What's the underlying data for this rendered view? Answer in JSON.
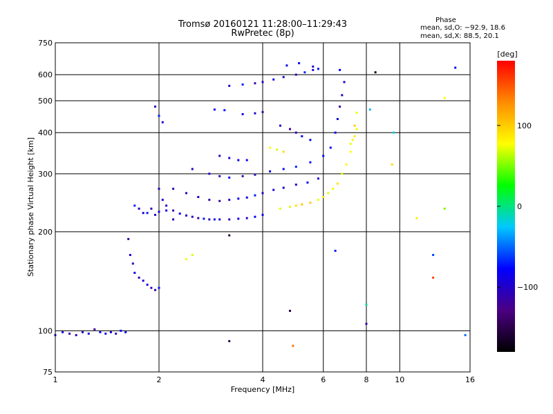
{
  "chart_data": {
    "type": "scatter",
    "title": "Tromsø 20160121 11:28:00–11:29:43",
    "subtitle": "RwPretec (8p)",
    "xlabel": "Frequency [MHz]",
    "ylabel": "Stationary phase Virtual Height [km]",
    "x_scale": "log",
    "y_scale": "log",
    "xlim": [
      1,
      16
    ],
    "ylim": [
      75,
      750
    ],
    "x_ticks": [
      {
        "value": 1,
        "label": "1"
      },
      {
        "value": 2,
        "label": "2"
      },
      {
        "value": 4,
        "label": "4"
      },
      {
        "value": 6,
        "label": "6"
      },
      {
        "value": 8,
        "label": "8"
      },
      {
        "value": 10,
        "label": "10"
      },
      {
        "value": 16,
        "label": "16"
      }
    ],
    "y_ticks": [
      {
        "value": 75,
        "label": "75"
      },
      {
        "value": 100,
        "label": "100"
      },
      {
        "value": 200,
        "label": "200"
      },
      {
        "value": 300,
        "label": "300"
      },
      {
        "value": 400,
        "label": "400"
      },
      {
        "value": 500,
        "label": "500"
      },
      {
        "value": 600,
        "label": "600"
      },
      {
        "value": 750,
        "label": "750"
      }
    ],
    "grid": true,
    "stats": {
      "heading": "Phase",
      "line_o": "mean, sd,O: −92.9, 18.6",
      "line_x": "mean, sd,X:  88.5, 20.1"
    },
    "colorbar": {
      "label": "[deg]",
      "range": [
        -180,
        180
      ],
      "ticks": [
        {
          "value": 100,
          "label": "100"
        },
        {
          "value": 0,
          "label": "0"
        },
        {
          "value": -100,
          "label": "−100"
        }
      ],
      "colors": [
        "#000000",
        "#4b0082",
        "#0000ff",
        "#00c8ff",
        "#00ff00",
        "#ffff00",
        "#ff8c00",
        "#ff0000"
      ]
    },
    "series": [
      {
        "mode": "O",
        "mean_phase": -92.9,
        "points": [
          [
            1.0,
            97
          ],
          [
            1.05,
            99
          ],
          [
            1.1,
            98
          ],
          [
            1.15,
            97
          ],
          [
            1.2,
            99
          ],
          [
            1.25,
            98
          ],
          [
            1.3,
            101
          ],
          [
            1.35,
            99
          ],
          [
            1.4,
            98
          ],
          [
            1.45,
            99
          ],
          [
            1.5,
            98
          ],
          [
            1.55,
            100
          ],
          [
            1.6,
            99
          ],
          [
            1.63,
            190
          ],
          [
            1.65,
            170
          ],
          [
            1.68,
            160
          ],
          [
            1.7,
            150
          ],
          [
            1.75,
            145
          ],
          [
            1.8,
            142
          ],
          [
            1.85,
            138
          ],
          [
            1.9,
            135
          ],
          [
            1.95,
            133
          ],
          [
            2.0,
            135
          ],
          [
            1.7,
            240
          ],
          [
            1.75,
            235
          ],
          [
            1.8,
            228
          ],
          [
            1.85,
            228
          ],
          [
            1.9,
            235
          ],
          [
            1.95,
            225
          ],
          [
            2.0,
            230
          ],
          [
            2.1,
            232
          ],
          [
            2.2,
            218
          ],
          [
            1.95,
            480
          ],
          [
            2.0,
            450
          ],
          [
            2.05,
            430
          ],
          [
            2.0,
            270
          ],
          [
            2.05,
            250
          ],
          [
            2.1,
            240
          ],
          [
            2.2,
            232
          ],
          [
            2.3,
            227
          ],
          [
            2.4,
            224
          ],
          [
            2.5,
            222
          ],
          [
            2.6,
            220
          ],
          [
            2.7,
            219
          ],
          [
            2.8,
            218
          ],
          [
            2.9,
            218
          ],
          [
            3.0,
            218
          ],
          [
            3.2,
            218
          ],
          [
            3.4,
            219
          ],
          [
            3.6,
            220
          ],
          [
            3.8,
            222
          ],
          [
            4.0,
            225
          ],
          [
            2.2,
            270
          ],
          [
            2.4,
            262
          ],
          [
            2.6,
            255
          ],
          [
            2.8,
            250
          ],
          [
            3.0,
            248
          ],
          [
            3.2,
            250
          ],
          [
            3.4,
            252
          ],
          [
            3.6,
            254
          ],
          [
            3.8,
            258
          ],
          [
            4.0,
            262
          ],
          [
            4.3,
            268
          ],
          [
            4.6,
            272
          ],
          [
            5.0,
            278
          ],
          [
            5.4,
            282
          ],
          [
            5.8,
            290
          ],
          [
            2.5,
            310
          ],
          [
            2.8,
            300
          ],
          [
            3.0,
            295
          ],
          [
            3.2,
            292
          ],
          [
            3.5,
            295
          ],
          [
            3.8,
            298
          ],
          [
            4.2,
            305
          ],
          [
            4.6,
            310
          ],
          [
            5.0,
            315
          ],
          [
            5.5,
            325
          ],
          [
            6.0,
            340
          ],
          [
            6.3,
            360
          ],
          [
            6.5,
            400
          ],
          [
            6.6,
            440
          ],
          [
            6.7,
            480
          ],
          [
            6.8,
            520
          ],
          [
            6.9,
            570
          ],
          [
            3.0,
            340
          ],
          [
            3.2,
            335
          ],
          [
            3.4,
            330
          ],
          [
            3.6,
            330
          ],
          [
            3.2,
            555
          ],
          [
            3.5,
            560
          ],
          [
            3.8,
            565
          ],
          [
            4.0,
            570
          ],
          [
            4.3,
            580
          ],
          [
            4.6,
            590
          ],
          [
            5.0,
            600
          ],
          [
            5.3,
            610
          ],
          [
            5.6,
            620
          ],
          [
            5.8,
            625
          ],
          [
            3.5,
            455
          ],
          [
            3.8,
            458
          ],
          [
            4.0,
            462
          ],
          [
            2.9,
            470
          ],
          [
            3.1,
            468
          ],
          [
            4.5,
            420
          ],
          [
            4.8,
            410
          ],
          [
            5.0,
            400
          ],
          [
            5.2,
            390
          ],
          [
            5.5,
            380
          ],
          [
            4.7,
            640
          ],
          [
            5.1,
            650
          ],
          [
            5.6,
            635
          ],
          [
            6.7,
            620
          ]
        ]
      },
      {
        "mode": "X",
        "mean_phase": 88.5,
        "points": [
          [
            2.4,
            165
          ],
          [
            2.5,
            170
          ],
          [
            4.5,
            235
          ],
          [
            4.8,
            238
          ],
          [
            5.0,
            240
          ],
          [
            5.2,
            242
          ],
          [
            5.5,
            245
          ],
          [
            5.8,
            250
          ],
          [
            6.0,
            255
          ],
          [
            6.2,
            262
          ],
          [
            6.4,
            270
          ],
          [
            6.6,
            280
          ],
          [
            6.8,
            300
          ],
          [
            7.0,
            320
          ],
          [
            7.2,
            350
          ],
          [
            7.3,
            380
          ],
          [
            7.4,
            420
          ],
          [
            7.5,
            460
          ],
          [
            4.2,
            360
          ],
          [
            4.4,
            355
          ],
          [
            4.6,
            350
          ],
          [
            7.2,
            370
          ],
          [
            7.4,
            390
          ],
          [
            7.5,
            410
          ]
        ]
      },
      {
        "mode": "scattered",
        "points": [
          [
            8.0,
            120
          ],
          [
            8.2,
            470
          ],
          [
            8.5,
            610
          ],
          [
            9.5,
            320
          ],
          [
            9.6,
            400
          ],
          [
            11.2,
            220
          ],
          [
            12.5,
            170
          ],
          [
            12.5,
            145
          ],
          [
            13.5,
            510
          ],
          [
            13.5,
            235
          ],
          [
            14.5,
            630
          ],
          [
            15.5,
            97
          ],
          [
            4.8,
            115
          ],
          [
            4.9,
            90
          ],
          [
            3.2,
            93
          ],
          [
            3.2,
            195
          ],
          [
            8.0,
            105
          ],
          [
            6.5,
            175
          ]
        ]
      }
    ]
  }
}
